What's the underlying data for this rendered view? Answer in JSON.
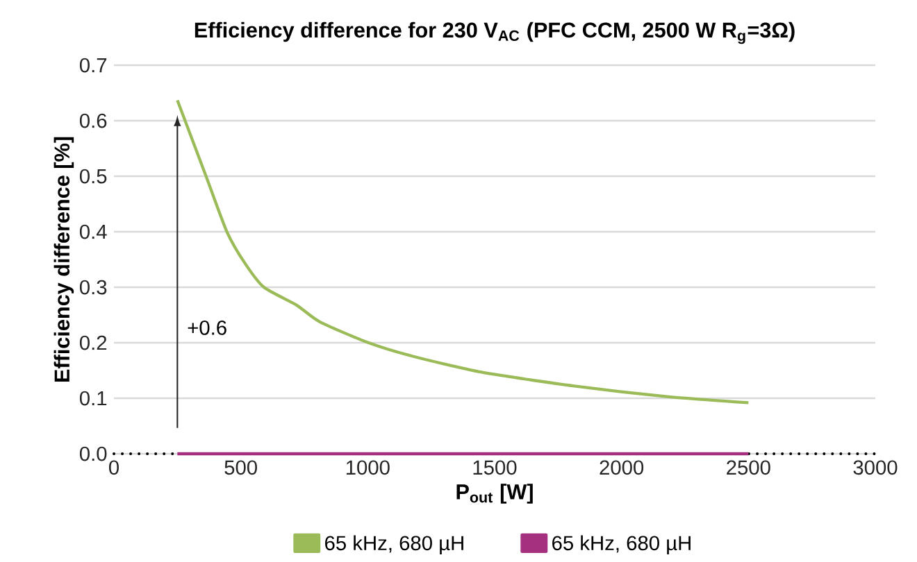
{
  "chart_data": {
    "type": "line",
    "title": "Efficiency difference for 230 V$_{AC}$  (PFC CCM, 2500 W R$_{g}$=3Ω)",
    "xlabel": "P$_{out}$ [W]",
    "ylabel": "Efficiency difference [%]",
    "series": [
      {
        "name": "65 kHz, 680 µH",
        "color": "#9bbb59",
        "x": [
          250,
          363,
          445,
          518,
          591,
          719,
          810,
          992,
          1175,
          1449,
          1814,
          2179,
          2500
        ],
        "values": [
          0.637,
          0.5,
          0.4,
          0.342,
          0.3,
          0.268,
          0.238,
          0.202,
          0.176,
          0.147,
          0.122,
          0.103,
          0.092
        ]
      },
      {
        "name": "65 kHz, 680 µH",
        "color": "#a5307f",
        "x": [
          250,
          2500
        ],
        "values": [
          0,
          0
        ]
      }
    ],
    "xlim": [
      0,
      3000
    ],
    "xticks": [
      0,
      500,
      1000,
      1500,
      2000,
      2500,
      3000
    ],
    "ylim": [
      0,
      0.7
    ],
    "yticks": [
      {
        "value": 0,
        "label": "0.0"
      },
      0.1,
      0.2,
      0.3,
      0.4,
      0.5,
      0.6,
      0.7
    ],
    "ref_lines": [
      {
        "axis": "y",
        "value": 0,
        "color": "#000000",
        "line_style": "dotted"
      }
    ],
    "annotations": [
      "+0.6"
    ],
    "grid": "y",
    "legend": "bottom",
    "marker": "none",
    "line_style": "solid"
  }
}
